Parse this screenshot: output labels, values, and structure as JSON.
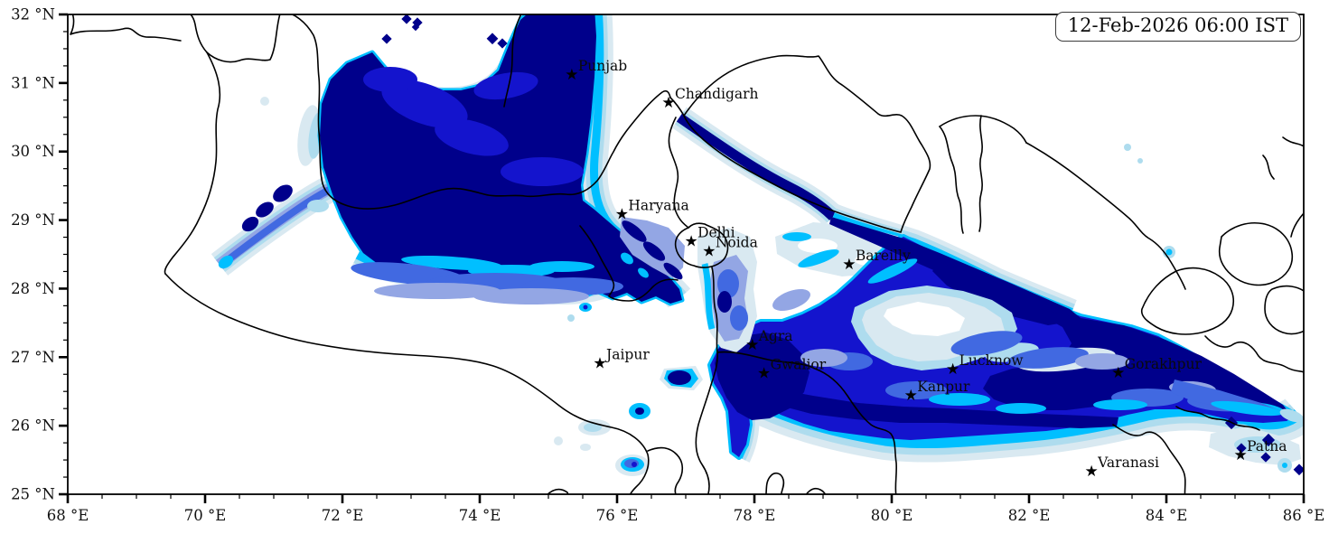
{
  "timestamp_box": {
    "text": "12-Feb-2026 06:00 IST"
  },
  "axes": {
    "x": {
      "range": [
        68,
        86
      ],
      "minor_step": 0.5,
      "ticks": [
        {
          "value": 68,
          "label": "68 °E"
        },
        {
          "value": 70,
          "label": "70 °E"
        },
        {
          "value": 72,
          "label": "72 °E"
        },
        {
          "value": 74,
          "label": "74 °E"
        },
        {
          "value": 76,
          "label": "76 °E"
        },
        {
          "value": 78,
          "label": "78 °E"
        },
        {
          "value": 80,
          "label": "80 °E"
        },
        {
          "value": 82,
          "label": "82 °E"
        },
        {
          "value": 84,
          "label": "84 °E"
        },
        {
          "value": 86,
          "label": "86 °E"
        }
      ]
    },
    "y": {
      "range": [
        25,
        32
      ],
      "minor_step": 0.25,
      "ticks": [
        {
          "value": 32,
          "label": "32 °N"
        },
        {
          "value": 31,
          "label": "31 °N"
        },
        {
          "value": 30,
          "label": "30 °N"
        },
        {
          "value": 29,
          "label": "29 °N"
        },
        {
          "value": 28,
          "label": "28 °N"
        },
        {
          "value": 27,
          "label": "27 °N"
        },
        {
          "value": 26,
          "label": "26 °N"
        },
        {
          "value": 25,
          "label": "25 °N"
        }
      ]
    }
  },
  "cities": [
    {
      "name": "Punjab",
      "lon": 75.34,
      "lat": 31.13
    },
    {
      "name": "Chandigarh",
      "lon": 76.75,
      "lat": 30.72
    },
    {
      "name": "Haryana",
      "lon": 76.07,
      "lat": 29.09
    },
    {
      "name": "Delhi",
      "lon": 77.08,
      "lat": 28.7
    },
    {
      "name": "Noida",
      "lon": 77.34,
      "lat": 28.55
    },
    {
      "name": "Bareilly",
      "lon": 79.38,
      "lat": 28.36
    },
    {
      "name": "Jaipur",
      "lon": 75.75,
      "lat": 26.92
    },
    {
      "name": "Agra",
      "lon": 77.97,
      "lat": 27.19
    },
    {
      "name": "Gwalior",
      "lon": 78.14,
      "lat": 26.77
    },
    {
      "name": "Lucknow",
      "lon": 80.89,
      "lat": 26.83
    },
    {
      "name": "Kanpur",
      "lon": 80.28,
      "lat": 26.45
    },
    {
      "name": "Gorakhpur",
      "lon": 83.3,
      "lat": 26.78
    },
    {
      "name": "Varanasi",
      "lon": 82.91,
      "lat": 25.34
    },
    {
      "name": "Patna",
      "lon": 85.08,
      "lat": 25.58
    }
  ],
  "palette": {
    "navy": "#00008B",
    "blue": "#1414CD",
    "royal": "#4169E1",
    "periwinkle": "#93A6E4",
    "cyan": "#00BFFF",
    "pale_cyan": "#AEDCEE",
    "palest": "#D9E9F1",
    "white": "#FFFFFF",
    "border": "#000000"
  }
}
